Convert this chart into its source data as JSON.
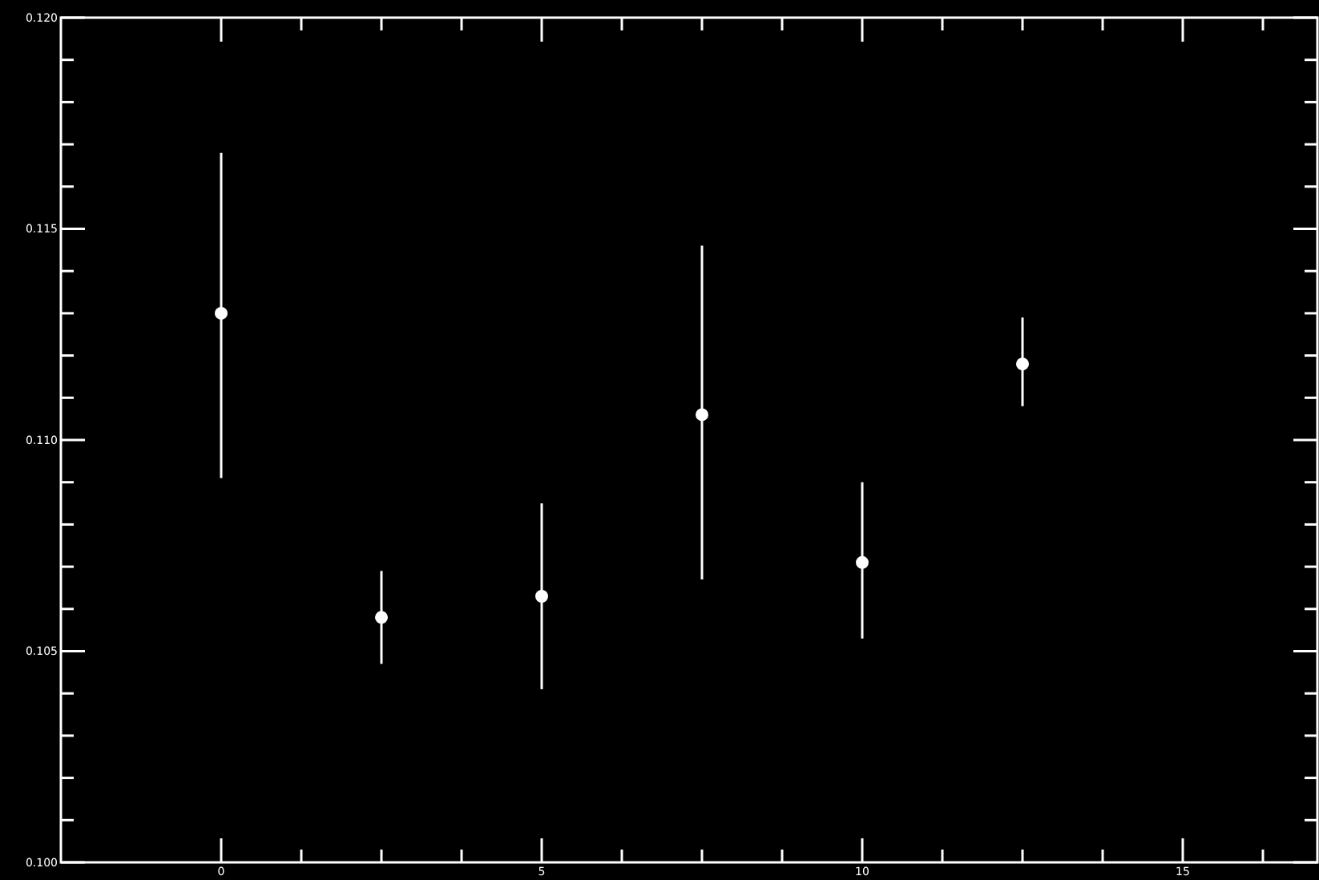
{
  "chart_data": {
    "type": "scatter",
    "marker": "circle",
    "x": [
      0,
      2.5,
      5,
      7.5,
      10,
      12.5
    ],
    "series": [
      {
        "color": "#ffffff",
        "values": [
          0.113,
          0.1058,
          0.1063,
          0.1106,
          0.1071,
          0.1118
        ],
        "errors": [
          [
            0.1091,
            0.1168
          ],
          [
            0.1047,
            0.1069
          ],
          [
            0.1041,
            0.1085
          ],
          [
            0.1067,
            0.1146
          ],
          [
            0.1053,
            0.109
          ],
          [
            0.1108,
            0.1129
          ]
        ]
      }
    ],
    "xlim": [
      -2.5,
      17.1
    ],
    "ylim": [
      0.1,
      0.12
    ],
    "xticks": [
      0,
      {
        "value": 1.25,
        "label": null
      },
      {
        "value": 2.5,
        "label": null
      },
      {
        "value": 3.75,
        "label": null
      },
      5,
      {
        "value": 6.25,
        "label": null
      },
      {
        "value": 7.5,
        "label": null
      },
      {
        "value": 8.75,
        "label": null
      },
      10,
      {
        "value": 11.25,
        "label": null
      },
      {
        "value": 12.5,
        "label": null
      },
      {
        "value": 13.75,
        "label": null
      },
      15,
      {
        "value": 16.25,
        "label": null
      }
    ],
    "yticks": [
      {
        "value": 0.1,
        "label": "0.100"
      },
      {
        "value": 0.101,
        "label": null
      },
      {
        "value": 0.102,
        "label": null
      },
      {
        "value": 0.103,
        "label": null
      },
      {
        "value": 0.104,
        "label": null
      },
      0.105,
      {
        "value": 0.106,
        "label": null
      },
      {
        "value": 0.107,
        "label": null
      },
      {
        "value": 0.108,
        "label": null
      },
      {
        "value": 0.109,
        "label": null
      },
      {
        "value": 0.11,
        "label": "0.110"
      },
      {
        "value": 0.111,
        "label": null
      },
      {
        "value": 0.112,
        "label": null
      },
      {
        "value": 0.113,
        "label": null
      },
      {
        "value": 0.114,
        "label": null
      },
      0.115,
      {
        "value": 0.116,
        "label": null
      },
      {
        "value": 0.117,
        "label": null
      },
      {
        "value": 0.118,
        "label": null
      },
      {
        "value": 0.119,
        "label": null
      },
      {
        "value": 0.12,
        "label": "0.120"
      }
    ]
  }
}
